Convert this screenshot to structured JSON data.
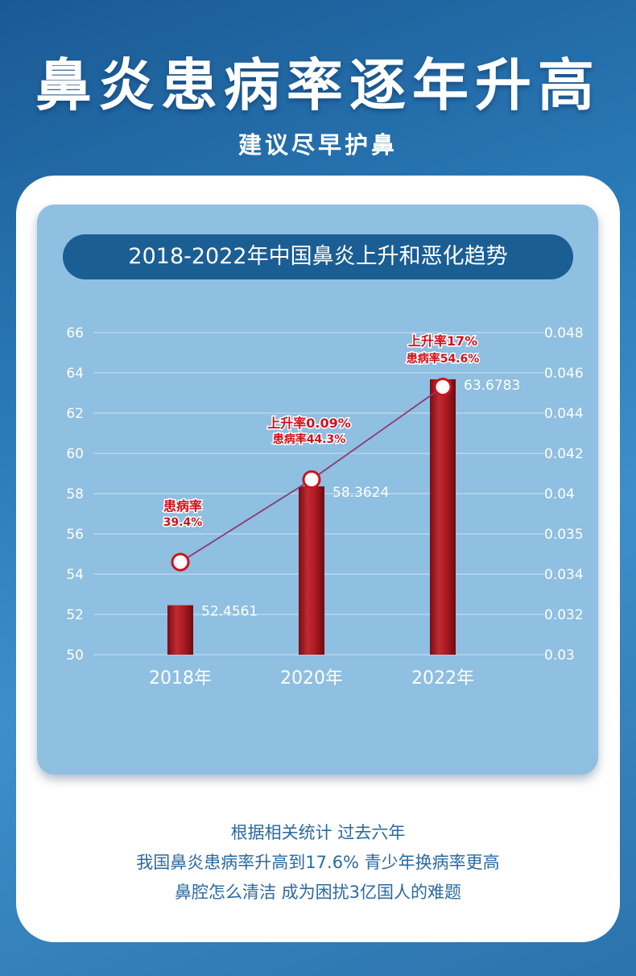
{
  "header": {
    "title": "鼻炎患病率逐年升高",
    "subtitle": "建议尽早护鼻"
  },
  "chart_title": "2018-2022年中国鼻炎上升和恶化趋势",
  "chart_data": {
    "type": "bar",
    "title": "2018-2022年中国鼻炎上升和恶化趋势",
    "categories": [
      "2018年",
      "2020年",
      "2022年"
    ],
    "series": [
      {
        "values": [
          52.4561,
          58.3624,
          63.6783
        ]
      }
    ],
    "line_points": [
      54.6,
      58.7,
      63.3
    ],
    "data_labels": [
      "52.4561",
      "58.3624",
      "63.6783"
    ],
    "ylim": [
      50,
      66
    ],
    "y_ticks": [
      "50",
      "52",
      "54",
      "56",
      "58",
      "60",
      "62",
      "64",
      "66"
    ],
    "y2_ticks": [
      "0.03",
      "0.032",
      "0.034",
      "0.035",
      "0.04",
      "0.042",
      "0.044",
      "0.046",
      "0.048"
    ],
    "annotations": [
      {
        "line1": "患病率",
        "line2": "39.4%"
      },
      {
        "line1": "上升率0.09%",
        "line2": "患病率44.3%"
      },
      {
        "line1": "上升率17%",
        "line2": "患病率54.6%"
      }
    ],
    "grid": true,
    "colors": {
      "bar": "#a3161e",
      "line": "#8a3a6f",
      "marker_ring": "#d0111b",
      "annotation": "#d0111b",
      "axis_text": "#ffffff",
      "grid": "#b9d6ec"
    }
  },
  "footer": {
    "line1": "根据相关统计 过去六年",
    "line2": "我国鼻炎患病率升高到17.6% 青少年换病率更高",
    "line3": "鼻腔怎么清洁 成为困扰3亿国人的难题"
  }
}
